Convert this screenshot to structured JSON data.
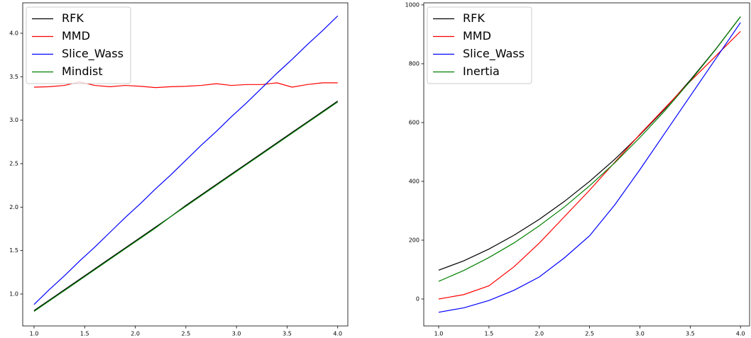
{
  "chart_data": [
    {
      "type": "line",
      "x": [
        1.0,
        1.15,
        1.3,
        1.45,
        1.6,
        1.75,
        1.9,
        2.05,
        2.2,
        2.35,
        2.5,
        2.65,
        2.8,
        2.95,
        3.1,
        3.25,
        3.4,
        3.55,
        3.7,
        3.85,
        4.0
      ],
      "series": [
        {
          "name": "RFK",
          "color": "#000000",
          "values": [
            0.81,
            0.93,
            1.05,
            1.17,
            1.29,
            1.41,
            1.53,
            1.65,
            1.77,
            1.89,
            2.02,
            2.14,
            2.26,
            2.38,
            2.5,
            2.62,
            2.74,
            2.86,
            2.98,
            3.1,
            3.22
          ]
        },
        {
          "name": "MMD",
          "color": "#ff0000",
          "values": [
            3.38,
            3.385,
            3.4,
            3.44,
            3.4,
            3.385,
            3.4,
            3.39,
            3.375,
            3.385,
            3.39,
            3.4,
            3.42,
            3.4,
            3.41,
            3.41,
            3.43,
            3.38,
            3.41,
            3.43,
            3.43
          ]
        },
        {
          "name": "Slice_Wass",
          "color": "#0000ff",
          "values": [
            0.88,
            1.05,
            1.21,
            1.38,
            1.54,
            1.71,
            1.88,
            2.04,
            2.21,
            2.37,
            2.54,
            2.71,
            2.87,
            3.04,
            3.2,
            3.37,
            3.54,
            3.7,
            3.87,
            4.03,
            4.2
          ]
        },
        {
          "name": "Mindist",
          "color": "#008000",
          "values": [
            0.8,
            0.92,
            1.04,
            1.16,
            1.28,
            1.4,
            1.52,
            1.64,
            1.76,
            1.89,
            2.01,
            2.13,
            2.25,
            2.37,
            2.49,
            2.61,
            2.73,
            2.85,
            2.97,
            3.09,
            3.21
          ]
        }
      ],
      "xlim": [
        0.888,
        4.1
      ],
      "ylim": [
        0.633,
        4.35
      ],
      "xticks": [
        {
          "value": 1.0,
          "label": "1.0"
        },
        {
          "value": 1.5,
          "label": "1.5"
        },
        {
          "value": 2.0,
          "label": "2.0"
        },
        {
          "value": 2.5,
          "label": "2.5"
        },
        {
          "value": 3.0,
          "label": "3.0"
        },
        {
          "value": 3.5,
          "label": "3.5"
        },
        {
          "value": 4.0,
          "label": "4.0"
        }
      ],
      "yticks": [
        {
          "value": 1.0,
          "label": "1.0"
        },
        {
          "value": 1.5,
          "label": "1.5"
        },
        {
          "value": 2.0,
          "label": "2.0"
        },
        {
          "value": 2.5,
          "label": "2.5"
        },
        {
          "value": 3.0,
          "label": "3.0"
        },
        {
          "value": 3.5,
          "label": "3.5"
        },
        {
          "value": 4.0,
          "label": "4.0"
        }
      ],
      "legend": "upper left"
    },
    {
      "type": "line",
      "x": [
        1.0,
        1.25,
        1.5,
        1.75,
        2.0,
        2.25,
        2.5,
        2.75,
        3.0,
        3.25,
        3.5,
        3.75,
        4.0
      ],
      "series": [
        {
          "name": "RFK",
          "color": "#000000",
          "values": [
            98,
            130,
            170,
            217,
            271,
            332,
            400,
            475,
            558,
            647,
            744,
            848,
            960
          ]
        },
        {
          "name": "MMD",
          "color": "#ff0000",
          "values": [
            0,
            15,
            45,
            110,
            190,
            280,
            370,
            465,
            560,
            650,
            740,
            825,
            910
          ]
        },
        {
          "name": "Slice_Wass",
          "color": "#0000ff",
          "values": [
            -45,
            -30,
            -5,
            30,
            75,
            140,
            215,
            320,
            440,
            565,
            690,
            815,
            940
          ]
        },
        {
          "name": "Inertia",
          "color": "#008000",
          "values": [
            60,
            97,
            141,
            191,
            249,
            313,
            385,
            463,
            549,
            641,
            741,
            847,
            960
          ]
        }
      ],
      "xlim": [
        0.852,
        4.09
      ],
      "ylim": [
        -91.6,
        1007
      ],
      "xticks": [
        {
          "value": 1.0,
          "label": "1.0"
        },
        {
          "value": 1.5,
          "label": "1.5"
        },
        {
          "value": 2.0,
          "label": "2.0"
        },
        {
          "value": 2.5,
          "label": "2.5"
        },
        {
          "value": 3.0,
          "label": "3.0"
        },
        {
          "value": 3.5,
          "label": "3.5"
        },
        {
          "value": 4.0,
          "label": "4.0"
        }
      ],
      "yticks": [
        0,
        200,
        400,
        600,
        800,
        1000
      ],
      "legend": "upper left"
    }
  ]
}
